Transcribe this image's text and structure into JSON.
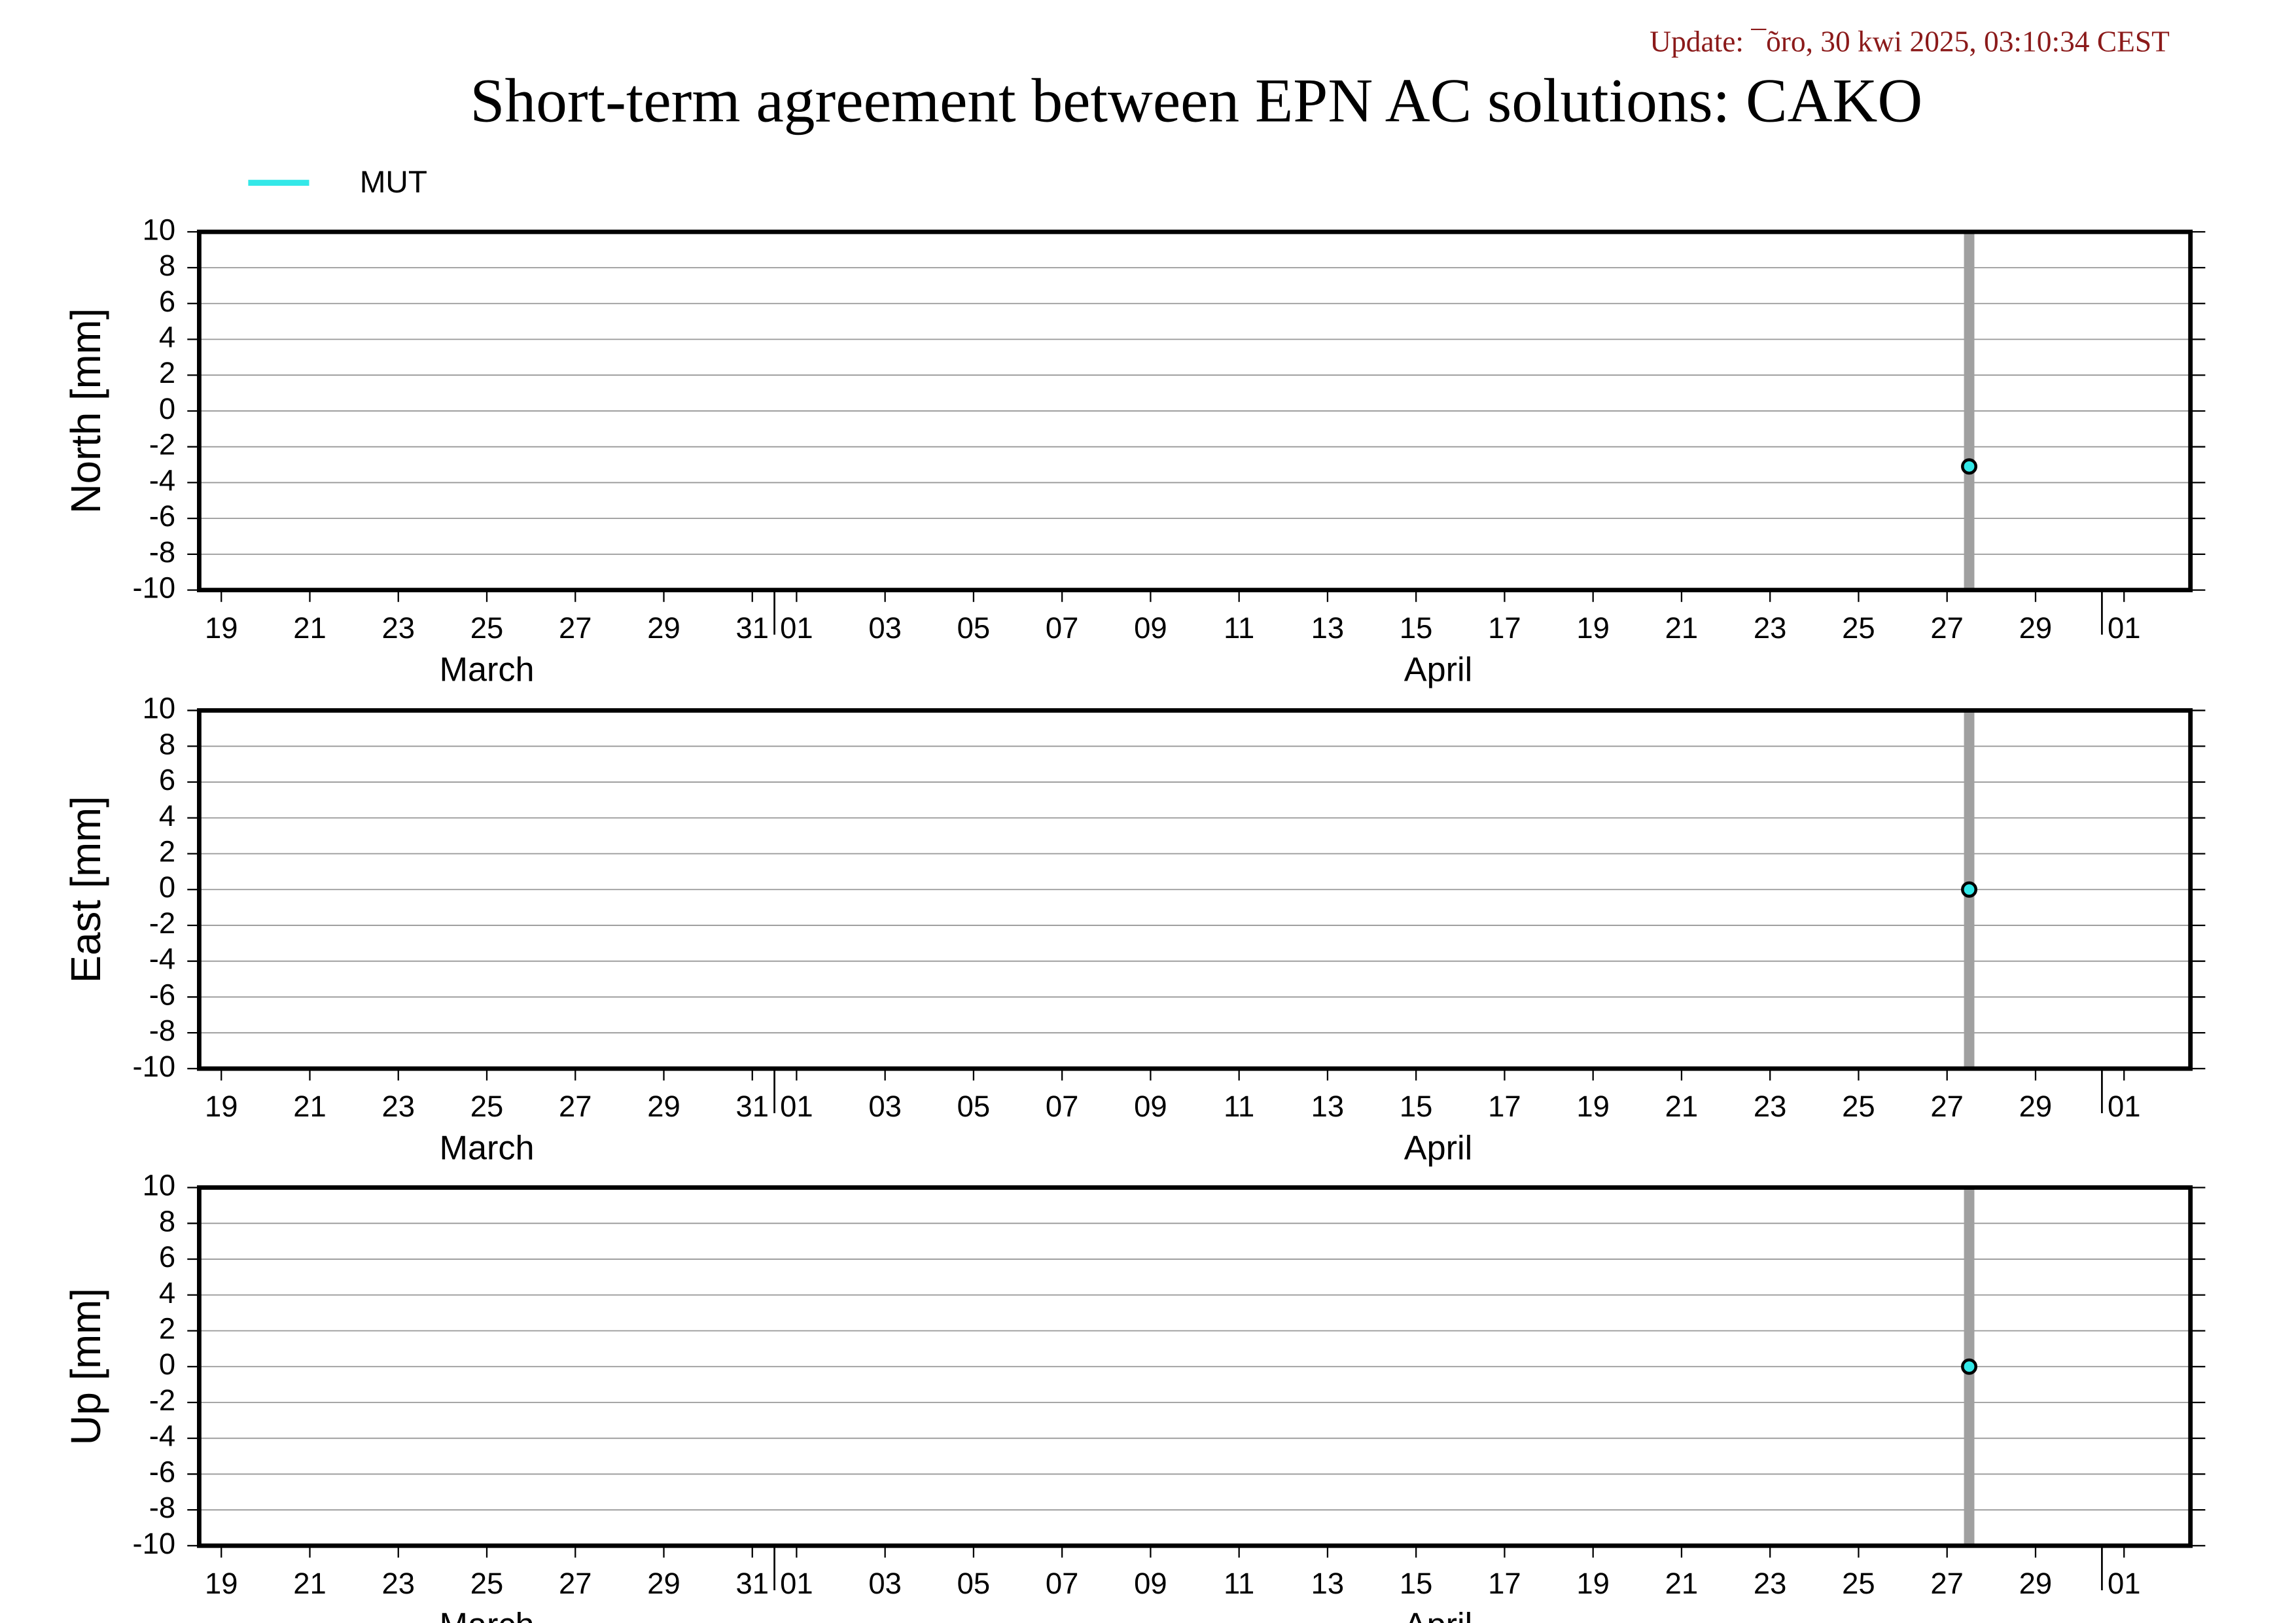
{
  "page": {
    "title": "Short-term agreement between EPN AC solutions: CAKO",
    "update": "Update: ¯õro, 30 kwi 2025, 03:10:34 CEST"
  },
  "chart_data": [
    {
      "type": "scatter",
      "ylabel": "North [mm]",
      "series": [
        {
          "name": "MUT",
          "color": "#33e8e8",
          "x": [
            "04-28"
          ],
          "values": [
            -3.1
          ]
        }
      ],
      "xlim": [
        "03-19",
        "05-03"
      ],
      "xticks": [
        {
          "value": "03-19",
          "label": "19"
        },
        {
          "value": "03-21",
          "label": "21"
        },
        {
          "value": "03-23",
          "label": "23"
        },
        {
          "value": "03-25",
          "label": "25"
        },
        {
          "value": "03-27",
          "label": "27"
        },
        {
          "value": "03-29",
          "label": "29"
        },
        {
          "value": "03-31",
          "label": "31"
        },
        {
          "value": "04-01",
          "label": "01"
        },
        {
          "value": "04-03",
          "label": "03"
        },
        {
          "value": "04-05",
          "label": "05"
        },
        {
          "value": "04-07",
          "label": "07"
        },
        {
          "value": "04-09",
          "label": "09"
        },
        {
          "value": "04-11",
          "label": "11"
        },
        {
          "value": "04-13",
          "label": "13"
        },
        {
          "value": "04-15",
          "label": "15"
        },
        {
          "value": "04-17",
          "label": "17"
        },
        {
          "value": "04-19",
          "label": "19"
        },
        {
          "value": "04-21",
          "label": "21"
        },
        {
          "value": "04-23",
          "label": "23"
        },
        {
          "value": "04-25",
          "label": "25"
        },
        {
          "value": "04-27",
          "label": "27"
        },
        {
          "value": "04-29",
          "label": "29"
        },
        {
          "value": "05-01",
          "label": "01"
        }
      ],
      "months": [
        {
          "value": "03-01",
          "label": "March"
        },
        {
          "value": "04-01",
          "label": "April"
        },
        {
          "value": "05-01",
          "label": null
        }
      ],
      "vline": {
        "x": "04-28",
        "color": "#a0a0a0"
      },
      "ylim": [
        -10,
        10
      ],
      "yticks": [
        -10,
        -8,
        -6,
        -4,
        -2,
        0,
        2,
        4,
        6,
        8,
        10
      ],
      "grid": true
    },
    {
      "type": "scatter",
      "ylabel": "East [mm]",
      "series": [
        {
          "name": "MUT",
          "color": "#33e8e8",
          "x": [
            "04-28"
          ],
          "values": [
            0
          ]
        }
      ],
      "xlim": [
        "03-19",
        "05-03"
      ],
      "xticks": [
        {
          "value": "03-19",
          "label": "19"
        },
        {
          "value": "03-21",
          "label": "21"
        },
        {
          "value": "03-23",
          "label": "23"
        },
        {
          "value": "03-25",
          "label": "25"
        },
        {
          "value": "03-27",
          "label": "27"
        },
        {
          "value": "03-29",
          "label": "29"
        },
        {
          "value": "03-31",
          "label": "31"
        },
        {
          "value": "04-01",
          "label": "01"
        },
        {
          "value": "04-03",
          "label": "03"
        },
        {
          "value": "04-05",
          "label": "05"
        },
        {
          "value": "04-07",
          "label": "07"
        },
        {
          "value": "04-09",
          "label": "09"
        },
        {
          "value": "04-11",
          "label": "11"
        },
        {
          "value": "04-13",
          "label": "13"
        },
        {
          "value": "04-15",
          "label": "15"
        },
        {
          "value": "04-17",
          "label": "17"
        },
        {
          "value": "04-19",
          "label": "19"
        },
        {
          "value": "04-21",
          "label": "21"
        },
        {
          "value": "04-23",
          "label": "23"
        },
        {
          "value": "04-25",
          "label": "25"
        },
        {
          "value": "04-27",
          "label": "27"
        },
        {
          "value": "04-29",
          "label": "29"
        },
        {
          "value": "05-01",
          "label": "01"
        }
      ],
      "months": [
        {
          "value": "03-01",
          "label": "March"
        },
        {
          "value": "04-01",
          "label": "April"
        },
        {
          "value": "05-01",
          "label": null
        }
      ],
      "vline": {
        "x": "04-28",
        "color": "#a0a0a0"
      },
      "ylim": [
        -10,
        10
      ],
      "yticks": [
        -10,
        -8,
        -6,
        -4,
        -2,
        0,
        2,
        4,
        6,
        8,
        10
      ],
      "grid": true
    },
    {
      "type": "scatter",
      "ylabel": "Up [mm]",
      "series": [
        {
          "name": "MUT",
          "color": "#33e8e8",
          "x": [
            "04-28"
          ],
          "values": [
            0
          ]
        }
      ],
      "xlim": [
        "03-19",
        "05-03"
      ],
      "xticks": [
        {
          "value": "03-19",
          "label": "19"
        },
        {
          "value": "03-21",
          "label": "21"
        },
        {
          "value": "03-23",
          "label": "23"
        },
        {
          "value": "03-25",
          "label": "25"
        },
        {
          "value": "03-27",
          "label": "27"
        },
        {
          "value": "03-29",
          "label": "29"
        },
        {
          "value": "03-31",
          "label": "31"
        },
        {
          "value": "04-01",
          "label": "01"
        },
        {
          "value": "04-03",
          "label": "03"
        },
        {
          "value": "04-05",
          "label": "05"
        },
        {
          "value": "04-07",
          "label": "07"
        },
        {
          "value": "04-09",
          "label": "09"
        },
        {
          "value": "04-11",
          "label": "11"
        },
        {
          "value": "04-13",
          "label": "13"
        },
        {
          "value": "04-15",
          "label": "15"
        },
        {
          "value": "04-17",
          "label": "17"
        },
        {
          "value": "04-19",
          "label": "19"
        },
        {
          "value": "04-21",
          "label": "21"
        },
        {
          "value": "04-23",
          "label": "23"
        },
        {
          "value": "04-25",
          "label": "25"
        },
        {
          "value": "04-27",
          "label": "27"
        },
        {
          "value": "04-29",
          "label": "29"
        },
        {
          "value": "05-01",
          "label": "01"
        }
      ],
      "months": [
        {
          "value": "03-01",
          "label": "March"
        },
        {
          "value": "04-01",
          "label": "April"
        },
        {
          "value": "05-01",
          "label": null
        }
      ],
      "vline": {
        "x": "04-28",
        "color": "#a0a0a0"
      },
      "ylim": [
        -10,
        10
      ],
      "yticks": [
        -10,
        -8,
        -6,
        -4,
        -2,
        0,
        2,
        4,
        6,
        8,
        10
      ],
      "grid": true
    }
  ]
}
